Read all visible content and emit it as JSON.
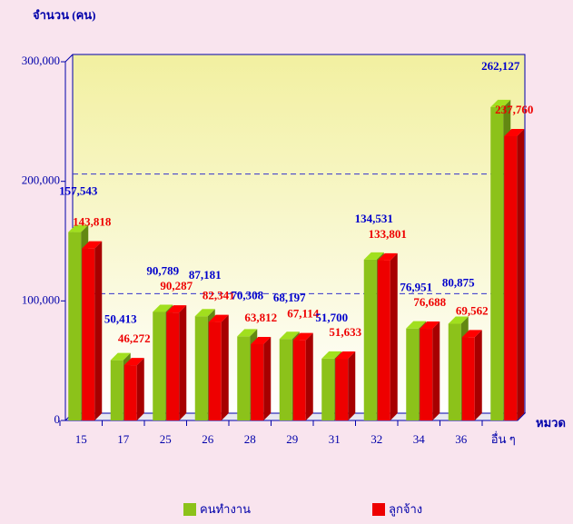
{
  "chart_data": {
    "type": "bar",
    "y_axis_label": "จำนวน (คน)",
    "x_axis_label": "หมวด",
    "categories": [
      "15",
      "17",
      "25",
      "26",
      "28",
      "29",
      "31",
      "32",
      "34",
      "36",
      "อื่น ๆ"
    ],
    "series": [
      {
        "name": "คนทำงาน",
        "color": "#8cc21a",
        "label_color": "#0000cc",
        "values": [
          157543,
          50413,
          90789,
          87181,
          70308,
          68197,
          51700,
          134531,
          76951,
          80875,
          262127
        ],
        "value_labels": [
          "157,543",
          "50,413",
          "90,789",
          "87,181",
          "70,308",
          "68,197",
          "51,700",
          "134,531",
          "76,951",
          "80,875",
          "262,127"
        ]
      },
      {
        "name": "ลูกจ้าง",
        "color": "#ee0000",
        "label_color": "#ee0000",
        "values": [
          143818,
          46272,
          90287,
          82341,
          63812,
          67114,
          51633,
          133801,
          76688,
          69562,
          237760
        ],
        "value_labels": [
          "143,818",
          "46,272",
          "90,287",
          "82,341",
          "63,812",
          "67,114",
          "51,633",
          "133,801",
          "76,688",
          "69,562",
          "237,760"
        ]
      }
    ],
    "ylim": [
      0,
      300000
    ],
    "yticks": [
      0,
      {
        "value": 100000,
        "label": "100,000"
      },
      {
        "value": 200000,
        "label": "200,000"
      },
      {
        "value": 300000,
        "label": "300,000"
      }
    ],
    "grid": true
  }
}
